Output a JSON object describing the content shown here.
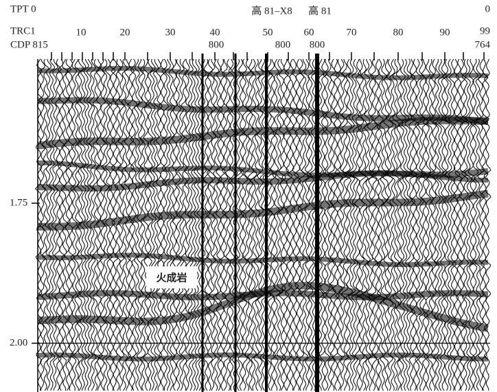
{
  "header": {
    "wells": [
      "高 81–X8",
      "高 81"
    ]
  },
  "rows": {
    "tpt": "TPT 0",
    "trc": "TRC1",
    "cdp": "CDP 815"
  },
  "trace_labels": [
    "10",
    "20",
    "30",
    "40",
    "50",
    "60",
    "70",
    "80",
    "90"
  ],
  "cdp_labels": [
    "800",
    "800",
    "800"
  ],
  "right_labels": [
    "0",
    "99",
    "764"
  ],
  "time_labels": [
    "1.75",
    "2.00"
  ],
  "annotation": "火成岩"
}
